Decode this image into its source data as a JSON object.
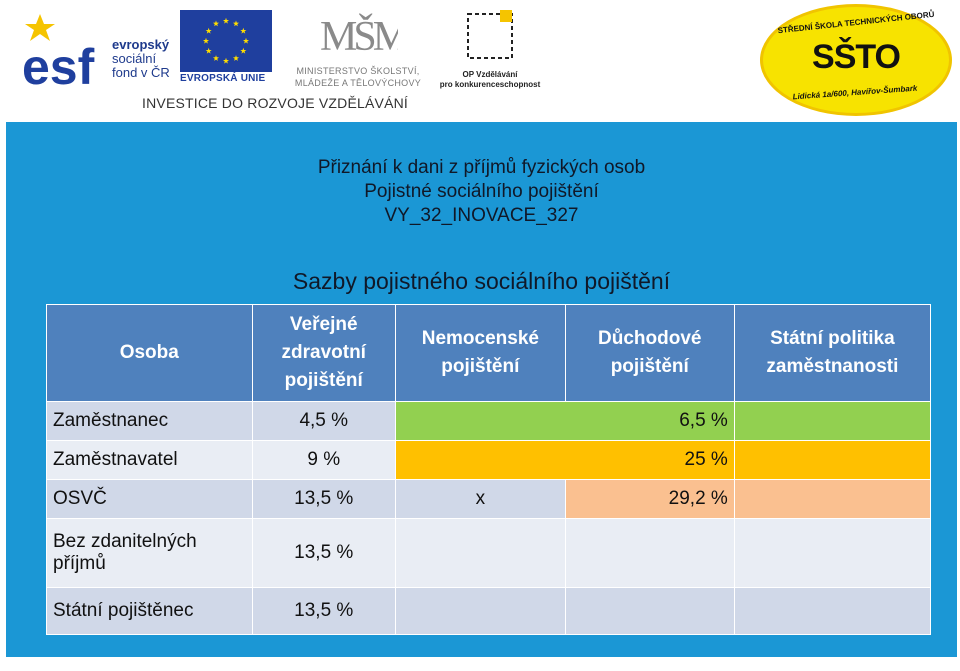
{
  "logos": {
    "esf_lines": [
      "evropský",
      "sociální",
      "fond v ČR"
    ],
    "eu_label": "EVROPSKÁ UNIE",
    "msmt_line1": "MINISTERSTVO ŠKOLSTVÍ,",
    "msmt_line2": "MLÁDEŽE A TĚLOVÝCHOVY",
    "op_line1": "OP Vzdělávání",
    "op_line2": "pro konkurenceschopnost",
    "tagline": "INVESTICE DO ROZVOJE VZDĚLÁVÁNÍ",
    "school_top": "STŘEDNÍ ŠKOLA TECHNICKÝCH OBORŮ",
    "school_main": "SŠTO",
    "school_bottom": "Lidická 1a/600, Havířov-Šumbark"
  },
  "header": {
    "line1": "Přiznání k dani z příjmů fyzických osob",
    "line2": "Pojistné sociálního pojištění",
    "line3": "VY_32_INOVACE_327"
  },
  "subtitle": "Sazby pojistného sociálního pojištění",
  "table": {
    "headers": [
      "Osoba",
      "Veřejné zdravotní pojištění",
      "Nemocenské pojištění",
      "Důchodové pojištění",
      "Státní politika zaměstnanosti"
    ],
    "rows": [
      {
        "name": "Zaměstnanec",
        "health": "4,5 %",
        "sick": "",
        "pension": "6,5 %",
        "policy": ""
      },
      {
        "name": "Zaměstnavatel",
        "health": "9 %",
        "sick": "",
        "pension": "25 %",
        "policy": ""
      },
      {
        "name": "OSVČ",
        "health": "13,5 %",
        "sick": "x",
        "pension": "29,2 %",
        "policy": ""
      },
      {
        "name": "Bez zdanitelných příjmů",
        "health": "13,5 %",
        "sick": "",
        "pension": "",
        "policy": ""
      },
      {
        "name": "Státní pojištěnec",
        "health": "13,5 %",
        "sick": "",
        "pension": "",
        "policy": ""
      }
    ]
  },
  "colors": {
    "slide_background": "#1b97d5",
    "header_row": "#4f81bd",
    "employee_highlight": "#92d050",
    "employer_highlight": "#ffc000",
    "osvc_highlight": "#fac090"
  }
}
